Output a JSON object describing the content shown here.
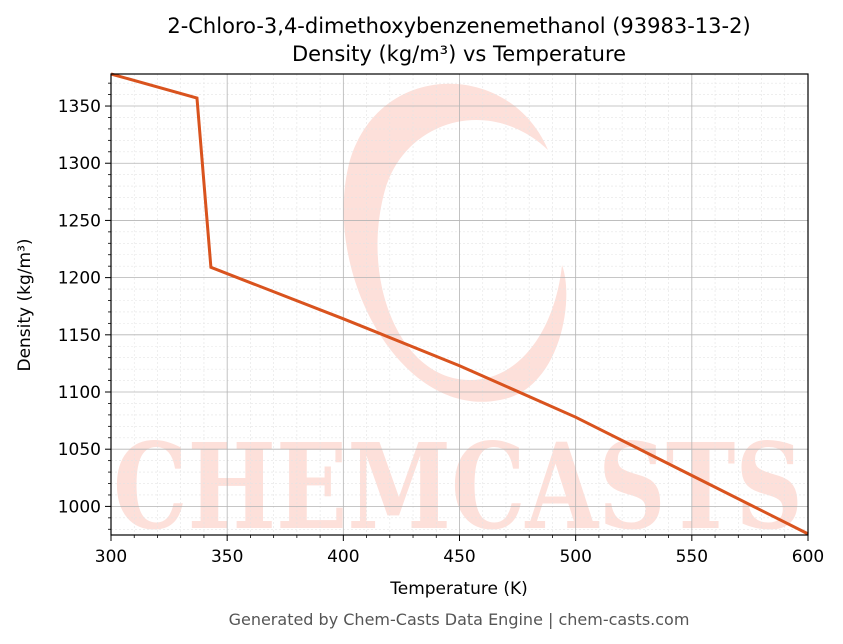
{
  "footer": "Generated by Chem-Casts Data Engine | chem-casts.com",
  "watermark": {
    "text": "CHEMCASTS",
    "color": "#fde0da"
  },
  "chart_data": {
    "type": "line",
    "title": "2-Chloro-3,4-dimethoxybenzenemethanol (93983-13-2)",
    "subtitle": "Density (kg/m³) vs Temperature",
    "xlabel": "Temperature (K)",
    "ylabel": "Density (kg/m³)",
    "xlim": [
      300,
      600
    ],
    "ylim": [
      975,
      1378
    ],
    "xticks": [
      300,
      350,
      400,
      450,
      500,
      550,
      600
    ],
    "yticks": [
      1000,
      1050,
      1100,
      1150,
      1200,
      1250,
      1300,
      1350
    ],
    "grid": true,
    "line_color": "#d9531e",
    "series": [
      {
        "x": [
          300,
          337,
          343,
          400,
          450,
          500,
          550,
          600
        ],
        "values": [
          1378,
          1357,
          1209,
          1164,
          1123,
          1078,
          1027,
          976
        ]
      }
    ]
  }
}
